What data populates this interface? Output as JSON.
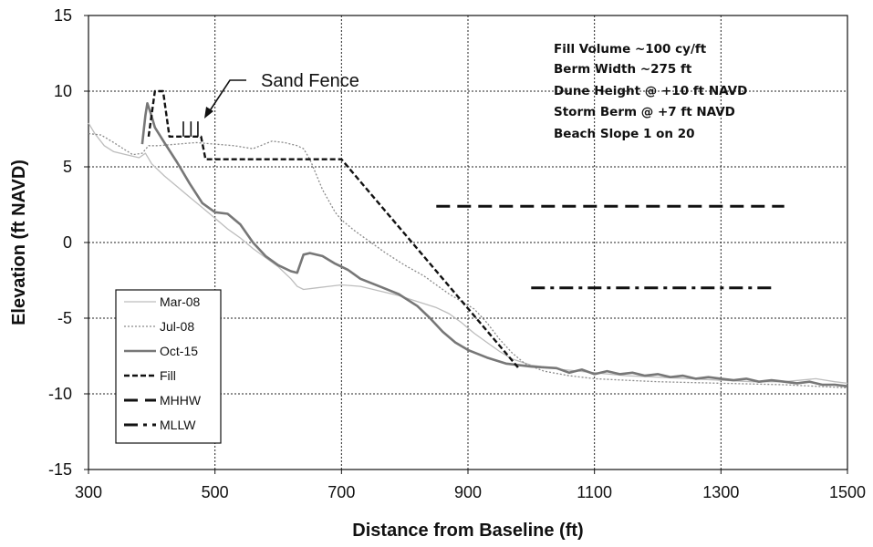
{
  "chart_data": {
    "type": "line",
    "xlabel": "Distance from Baseline (ft)",
    "ylabel": "Elevation (ft NAVD)",
    "xlim": [
      300,
      1500
    ],
    "ylim": [
      -15,
      15
    ],
    "xticks": [
      300,
      500,
      700,
      900,
      1100,
      1300,
      1500
    ],
    "yticks": [
      -15,
      -10,
      -5,
      0,
      5,
      10,
      15
    ],
    "grid": true,
    "legend_position": "lower-left",
    "series": [
      {
        "name": "Mar-08",
        "color": "#bdbdbd",
        "style": "thin-solid",
        "points": [
          [
            300,
            7.9
          ],
          [
            310,
            7.2
          ],
          [
            325,
            6.4
          ],
          [
            340,
            6.0
          ],
          [
            360,
            5.8
          ],
          [
            380,
            5.6
          ],
          [
            390,
            5.9
          ],
          [
            400,
            5.2
          ],
          [
            420,
            4.4
          ],
          [
            440,
            3.7
          ],
          [
            460,
            3.0
          ],
          [
            480,
            2.3
          ],
          [
            500,
            1.6
          ],
          [
            520,
            0.9
          ],
          [
            540,
            0.3
          ],
          [
            560,
            -0.4
          ],
          [
            580,
            -1.0
          ],
          [
            600,
            -1.6
          ],
          [
            620,
            -2.4
          ],
          [
            630,
            -2.9
          ],
          [
            640,
            -3.1
          ],
          [
            660,
            -3.0
          ],
          [
            680,
            -2.9
          ],
          [
            700,
            -2.8
          ],
          [
            730,
            -2.9
          ],
          [
            760,
            -3.2
          ],
          [
            790,
            -3.5
          ],
          [
            820,
            -3.9
          ],
          [
            850,
            -4.3
          ],
          [
            870,
            -4.7
          ],
          [
            890,
            -5.3
          ],
          [
            910,
            -6.0
          ],
          [
            930,
            -6.6
          ],
          [
            950,
            -7.2
          ],
          [
            970,
            -7.7
          ],
          [
            1000,
            -8.1
          ],
          [
            1050,
            -8.4
          ],
          [
            1100,
            -8.6
          ],
          [
            1150,
            -8.8
          ],
          [
            1200,
            -8.9
          ],
          [
            1250,
            -9.0
          ],
          [
            1300,
            -9.1
          ],
          [
            1350,
            -9.2
          ],
          [
            1400,
            -9.2
          ],
          [
            1450,
            -9.0
          ],
          [
            1480,
            -9.2
          ],
          [
            1500,
            -9.3
          ]
        ]
      },
      {
        "name": "Jul-08",
        "color": "#8a8a8a",
        "style": "dotted",
        "points": [
          [
            300,
            7.2
          ],
          [
            320,
            7.1
          ],
          [
            340,
            6.6
          ],
          [
            355,
            6.2
          ],
          [
            370,
            5.8
          ],
          [
            385,
            5.9
          ],
          [
            395,
            6.4
          ],
          [
            410,
            6.4
          ],
          [
            440,
            6.5
          ],
          [
            470,
            6.6
          ],
          [
            500,
            6.5
          ],
          [
            530,
            6.4
          ],
          [
            560,
            6.2
          ],
          [
            590,
            6.7
          ],
          [
            610,
            6.6
          ],
          [
            630,
            6.4
          ],
          [
            640,
            6.2
          ],
          [
            650,
            5.5
          ],
          [
            670,
            3.5
          ],
          [
            690,
            2.0
          ],
          [
            700,
            1.5
          ],
          [
            720,
            0.8
          ],
          [
            740,
            0.2
          ],
          [
            770,
            -0.7
          ],
          [
            800,
            -1.5
          ],
          [
            830,
            -2.2
          ],
          [
            850,
            -2.8
          ],
          [
            870,
            -3.4
          ],
          [
            890,
            -3.9
          ],
          [
            910,
            -4.4
          ],
          [
            930,
            -5.3
          ],
          [
            950,
            -6.4
          ],
          [
            970,
            -7.3
          ],
          [
            990,
            -8.0
          ],
          [
            1020,
            -8.5
          ],
          [
            1060,
            -8.8
          ],
          [
            1100,
            -9.0
          ],
          [
            1150,
            -9.1
          ],
          [
            1200,
            -9.2
          ],
          [
            1300,
            -9.3
          ],
          [
            1400,
            -9.4
          ],
          [
            1450,
            -9.5
          ],
          [
            1500,
            -9.6
          ]
        ]
      },
      {
        "name": "Oct-15",
        "color": "#777777",
        "style": "thick-solid",
        "points": [
          [
            385,
            6.5
          ],
          [
            390,
            8.4
          ],
          [
            393,
            9.2
          ],
          [
            398,
            8.6
          ],
          [
            405,
            7.6
          ],
          [
            420,
            6.6
          ],
          [
            440,
            5.3
          ],
          [
            460,
            3.9
          ],
          [
            480,
            2.6
          ],
          [
            500,
            2.0
          ],
          [
            520,
            1.9
          ],
          [
            540,
            1.2
          ],
          [
            560,
            0.0
          ],
          [
            580,
            -0.9
          ],
          [
            600,
            -1.5
          ],
          [
            620,
            -1.9
          ],
          [
            630,
            -2.0
          ],
          [
            640,
            -0.8
          ],
          [
            650,
            -0.7
          ],
          [
            670,
            -0.9
          ],
          [
            690,
            -1.4
          ],
          [
            710,
            -1.8
          ],
          [
            730,
            -2.4
          ],
          [
            760,
            -2.9
          ],
          [
            790,
            -3.4
          ],
          [
            820,
            -4.2
          ],
          [
            840,
            -5.0
          ],
          [
            860,
            -5.9
          ],
          [
            880,
            -6.6
          ],
          [
            900,
            -7.1
          ],
          [
            930,
            -7.6
          ],
          [
            960,
            -8.0
          ],
          [
            1000,
            -8.2
          ],
          [
            1040,
            -8.3
          ],
          [
            1060,
            -8.6
          ],
          [
            1080,
            -8.4
          ],
          [
            1100,
            -8.7
          ],
          [
            1120,
            -8.5
          ],
          [
            1140,
            -8.7
          ],
          [
            1160,
            -8.6
          ],
          [
            1180,
            -8.8
          ],
          [
            1200,
            -8.7
          ],
          [
            1220,
            -8.9
          ],
          [
            1240,
            -8.8
          ],
          [
            1260,
            -9.0
          ],
          [
            1280,
            -8.9
          ],
          [
            1300,
            -9.0
          ],
          [
            1320,
            -9.1
          ],
          [
            1340,
            -9.0
          ],
          [
            1360,
            -9.2
          ],
          [
            1380,
            -9.1
          ],
          [
            1400,
            -9.2
          ],
          [
            1420,
            -9.3
          ],
          [
            1440,
            -9.2
          ],
          [
            1460,
            -9.4
          ],
          [
            1480,
            -9.4
          ],
          [
            1500,
            -9.5
          ]
        ]
      },
      {
        "name": "Fill",
        "color": "#111111",
        "style": "short-dash",
        "points": [
          [
            395,
            7.0
          ],
          [
            405,
            10.0
          ],
          [
            418,
            10.0
          ],
          [
            428,
            7.0
          ],
          [
            478,
            7.0
          ],
          [
            485,
            5.5
          ],
          [
            700,
            5.5
          ],
          [
            980,
            -8.3
          ]
        ]
      },
      {
        "name": "MHHW",
        "color": "#111111",
        "style": "long-dash",
        "points": [
          [
            850,
            2.4
          ],
          [
            1400,
            2.4
          ]
        ]
      },
      {
        "name": "MLLW",
        "color": "#111111",
        "style": "dash-dot",
        "points": [
          [
            1000,
            -3.0
          ],
          [
            1385,
            -3.0
          ]
        ]
      }
    ],
    "annotations": {
      "notes": [
        "Fill Volume ~100 cy/ft",
        "Berm Width ~275 ft",
        "Dune Height @ +10 ft NAVD",
        "Storm Berm @ +7 ft NAVD",
        "Beach Slope 1 on 20"
      ],
      "callout": "Sand Fence",
      "fence_posts_x": [
        450,
        462,
        473
      ]
    }
  }
}
